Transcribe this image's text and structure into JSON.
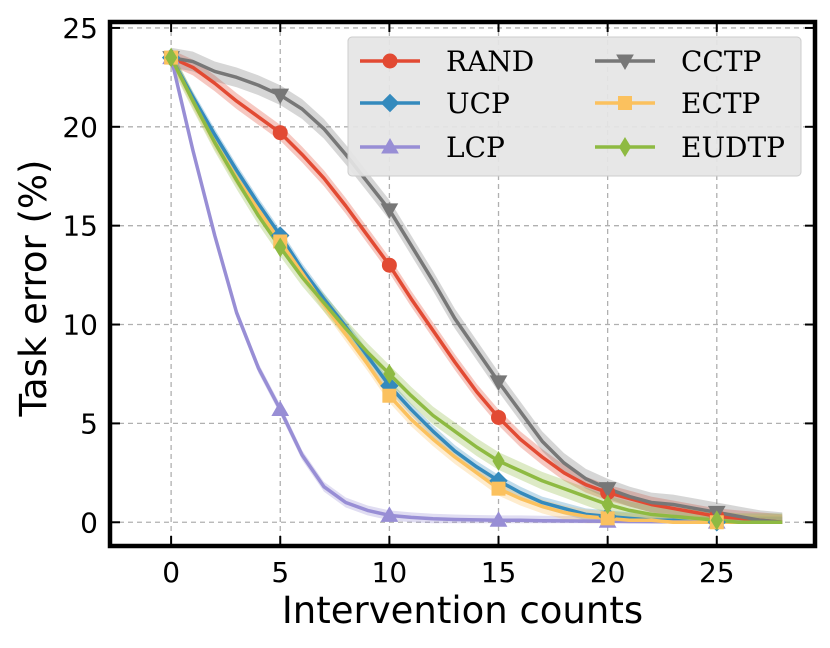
{
  "chart_data": {
    "type": "line",
    "title": "",
    "xlabel": "Intervention counts",
    "ylabel": "Task error (%)",
    "xlim": [
      -2.8,
      29.5
    ],
    "ylim": [
      -1.2,
      25.3
    ],
    "xticks": [
      0,
      5,
      10,
      15,
      20,
      25
    ],
    "yticks": [
      0,
      5,
      10,
      15,
      20,
      25
    ],
    "grid": true,
    "legend_position": "top-right",
    "x": [
      0,
      1,
      2,
      3,
      4,
      5,
      6,
      7,
      8,
      9,
      10,
      11,
      12,
      13,
      14,
      15,
      16,
      17,
      18,
      19,
      20,
      21,
      22,
      23,
      24,
      25,
      26,
      27,
      28
    ],
    "marker_every": 5,
    "series": [
      {
        "name": "RAND",
        "color": "#e24a33",
        "marker": "circle",
        "values": [
          23.5,
          23.0,
          22.2,
          21.3,
          20.5,
          19.7,
          18.6,
          17.4,
          16.0,
          14.5,
          13.0,
          11.3,
          9.7,
          8.1,
          6.6,
          5.3,
          4.2,
          3.3,
          2.5,
          1.9,
          1.5,
          1.2,
          0.9,
          0.7,
          0.5,
          0.3,
          0.2,
          0.1,
          0.0
        ],
        "band": 0.4
      },
      {
        "name": "UCP",
        "color": "#348abd",
        "marker": "diamond",
        "values": [
          23.5,
          21.5,
          19.6,
          17.8,
          16.1,
          14.5,
          12.8,
          11.3,
          9.9,
          8.4,
          6.9,
          5.7,
          4.6,
          3.6,
          2.8,
          2.1,
          1.5,
          1.0,
          0.7,
          0.4,
          0.3,
          0.2,
          0.1,
          0.1,
          0.0,
          0.0,
          0.0,
          0.0,
          0.0
        ],
        "band": 0.3
      },
      {
        "name": "LCP",
        "color": "#988ed5",
        "marker": "triangle-up",
        "values": [
          23.5,
          18.8,
          14.5,
          10.6,
          7.8,
          5.7,
          3.4,
          1.8,
          1.0,
          0.6,
          0.35,
          0.25,
          0.18,
          0.14,
          0.12,
          0.1,
          0.1,
          0.08,
          0.07,
          0.06,
          0.05,
          0.04,
          0.03,
          0.02,
          0.02,
          0.01,
          0.01,
          0.0,
          0.0
        ],
        "band": 0.25
      },
      {
        "name": "CCTP",
        "color": "#777777",
        "marker": "triangle-down",
        "values": [
          23.5,
          23.3,
          22.8,
          22.5,
          22.1,
          21.6,
          20.9,
          19.9,
          18.6,
          17.2,
          15.8,
          14.0,
          12.2,
          10.3,
          8.7,
          7.1,
          5.6,
          4.1,
          3.0,
          2.2,
          1.7,
          1.3,
          1.0,
          0.9,
          0.7,
          0.5,
          0.3,
          0.1,
          0.0
        ],
        "band": 0.5
      },
      {
        "name": "ECTP",
        "color": "#fbc15e",
        "marker": "square",
        "values": [
          23.5,
          21.3,
          19.2,
          17.4,
          15.8,
          14.2,
          12.6,
          11.0,
          9.5,
          8.0,
          6.4,
          5.2,
          4.2,
          3.3,
          2.5,
          1.7,
          1.2,
          0.8,
          0.5,
          0.3,
          0.2,
          0.1,
          0.1,
          0.0,
          0.0,
          0.0,
          0.0,
          0.0,
          0.0
        ],
        "band": 0.35
      },
      {
        "name": "EUDTP",
        "color": "#8eba42",
        "marker": "thin-diamond",
        "values": [
          23.5,
          21.3,
          19.2,
          17.3,
          15.5,
          13.9,
          12.4,
          11.1,
          9.8,
          8.6,
          7.5,
          6.4,
          5.4,
          4.6,
          3.8,
          3.1,
          2.6,
          2.1,
          1.7,
          1.3,
          0.9,
          0.6,
          0.4,
          0.3,
          0.2,
          0.1,
          0.0,
          0.0,
          0.0
        ],
        "band": 0.45
      }
    ]
  }
}
